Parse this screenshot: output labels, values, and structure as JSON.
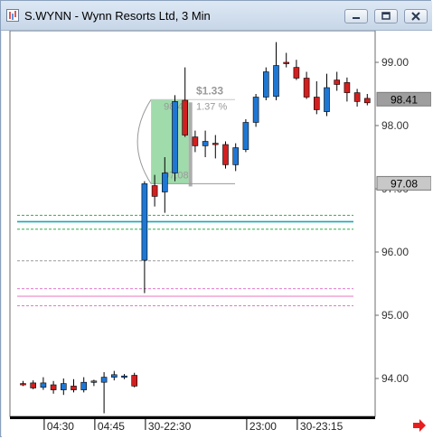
{
  "window": {
    "title": "S.WYNN - Wynn Resorts Ltd, 3 Min",
    "buttons": [
      "minimize",
      "restore",
      "close"
    ]
  },
  "chart_data": {
    "type": "candlestick",
    "title": "S.WYNN - Wynn Resorts Ltd, 3 Min",
    "ylim": [
      93.4,
      99.5
    ],
    "y_ticks": [
      "99.00",
      "98.00",
      "97.00",
      "96.00",
      "95.00",
      "94.00"
    ],
    "y_tick_values": [
      99.0,
      98.0,
      97.0,
      96.0,
      95.0,
      94.0
    ],
    "x_tick_labels": [
      "04:30",
      "04:45",
      "30-22:30",
      "23:00",
      "30-23:15"
    ],
    "x_tick_index": [
      2,
      7,
      12,
      22,
      27
    ],
    "price_labels": [
      {
        "text": "98.41",
        "value": 98.41,
        "style": "current"
      },
      {
        "text": "97.08",
        "value": 97.08,
        "style": "level"
      }
    ],
    "candles": [
      {
        "o": 93.92,
        "h": 93.96,
        "l": 93.88,
        "c": 93.9
      },
      {
        "o": 93.93,
        "h": 93.97,
        "l": 93.83,
        "c": 93.85
      },
      {
        "o": 93.86,
        "h": 94.02,
        "l": 93.82,
        "c": 93.93
      },
      {
        "o": 93.9,
        "h": 93.96,
        "l": 93.76,
        "c": 93.82
      },
      {
        "o": 93.82,
        "h": 94.0,
        "l": 93.74,
        "c": 93.92
      },
      {
        "o": 93.88,
        "h": 93.99,
        "l": 93.78,
        "c": 93.82
      },
      {
        "o": 93.82,
        "h": 94.02,
        "l": 93.78,
        "c": 93.94
      },
      {
        "o": 93.94,
        "h": 93.98,
        "l": 93.88,
        "c": 93.96
      },
      {
        "o": 93.94,
        "h": 94.1,
        "l": 93.45,
        "c": 94.02
      },
      {
        "o": 94.02,
        "h": 94.12,
        "l": 93.97,
        "c": 94.06
      },
      {
        "o": 94.03,
        "h": 94.07,
        "l": 93.99,
        "c": 94.04
      },
      {
        "o": 94.05,
        "h": 94.09,
        "l": 93.86,
        "c": 93.88
      },
      {
        "o": 95.87,
        "h": 97.12,
        "l": 95.35,
        "c": 97.08
      },
      {
        "o": 97.05,
        "h": 97.22,
        "l": 96.72,
        "c": 96.88
      },
      {
        "o": 96.95,
        "h": 97.5,
        "l": 96.62,
        "c": 97.25
      },
      {
        "o": 97.25,
        "h": 98.48,
        "l": 97.12,
        "c": 98.38
      },
      {
        "o": 98.4,
        "h": 98.92,
        "l": 97.82,
        "c": 97.85
      },
      {
        "o": 97.82,
        "h": 97.92,
        "l": 97.58,
        "c": 97.68
      },
      {
        "o": 97.68,
        "h": 97.92,
        "l": 97.5,
        "c": 97.75
      },
      {
        "o": 97.72,
        "h": 97.85,
        "l": 97.48,
        "c": 97.7
      },
      {
        "o": 97.7,
        "h": 97.75,
        "l": 97.32,
        "c": 97.38
      },
      {
        "o": 97.38,
        "h": 97.72,
        "l": 97.28,
        "c": 97.65
      },
      {
        "o": 97.62,
        "h": 98.1,
        "l": 97.58,
        "c": 98.05
      },
      {
        "o": 98.05,
        "h": 98.5,
        "l": 97.98,
        "c": 98.45
      },
      {
        "o": 98.45,
        "h": 98.92,
        "l": 98.4,
        "c": 98.85
      },
      {
        "o": 98.46,
        "h": 99.32,
        "l": 98.4,
        "c": 98.95
      },
      {
        "o": 99.0,
        "h": 99.15,
        "l": 98.92,
        "c": 98.98
      },
      {
        "o": 98.92,
        "h": 99.04,
        "l": 98.72,
        "c": 98.75
      },
      {
        "o": 98.75,
        "h": 98.85,
        "l": 98.42,
        "c": 98.45
      },
      {
        "o": 98.45,
        "h": 98.7,
        "l": 98.18,
        "c": 98.25
      },
      {
        "o": 98.22,
        "h": 98.82,
        "l": 98.15,
        "c": 98.6
      },
      {
        "o": 98.72,
        "h": 98.85,
        "l": 98.55,
        "c": 98.65
      },
      {
        "o": 98.68,
        "h": 98.76,
        "l": 98.38,
        "c": 98.52
      },
      {
        "o": 98.52,
        "h": 98.58,
        "l": 98.3,
        "c": 98.38
      },
      {
        "o": 98.43,
        "h": 98.5,
        "l": 98.32,
        "c": 98.36
      }
    ],
    "colors": {
      "up": "#1f77d4",
      "down": "#d21f1f",
      "wick": "#000000"
    },
    "horizontal_lines": [
      {
        "value": 96.58,
        "color": "#2fb04a",
        "dash": true
      },
      {
        "value": 96.48,
        "color": "#1aa8b8",
        "dash": false
      },
      {
        "value": 96.36,
        "color": "#2fb04a",
        "dash": true
      },
      {
        "value": 95.86,
        "color": "#9a9a9a",
        "dash": true
      },
      {
        "value": 95.42,
        "color": "#e07acb",
        "dash": true
      },
      {
        "value": 95.3,
        "color": "#f0a3d2",
        "dash": false
      },
      {
        "value": 95.15,
        "color": "#e07acb",
        "dash": true
      }
    ],
    "annotation": {
      "from_index": 13,
      "to_index": 16,
      "low": 97.08,
      "high": 98.41,
      "low_label": "97.08",
      "high_label": "98.41",
      "change": "$1.33",
      "percent": "1.37 %",
      "color": "#7fcf8f"
    }
  }
}
